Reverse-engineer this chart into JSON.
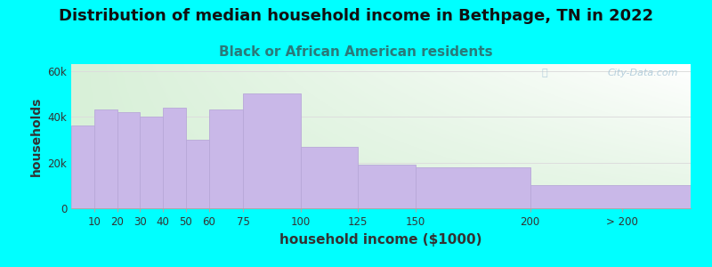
{
  "title": "Distribution of median household income in Bethpage, TN in 2022",
  "subtitle": "Black or African American residents",
  "xlabel": "household income ($1000)",
  "ylabel": "households",
  "bar_labels": [
    "10",
    "20",
    "30",
    "40",
    "50",
    "60",
    "75",
    "100",
    "125",
    "150",
    "200",
    "> 200"
  ],
  "bar_values": [
    36000,
    43000,
    42000,
    40000,
    44000,
    30000,
    43000,
    50000,
    27000,
    19000,
    18000,
    10000
  ],
  "bar_color": "#C9B8E8",
  "bar_edge_color": "#B8A8D8",
  "background_outer": "#00FFFF",
  "ytick_labels": [
    "0",
    "20k",
    "40k",
    "60k"
  ],
  "ytick_values": [
    0,
    20000,
    40000,
    60000
  ],
  "ylim": [
    0,
    63000
  ],
  "title_fontsize": 13,
  "subtitle_fontsize": 11,
  "xlabel_fontsize": 11,
  "ylabel_fontsize": 10,
  "title_color": "#111111",
  "subtitle_color": "#2a7a7a",
  "axis_label_color": "#333333",
  "watermark": "City-Data.com",
  "left_edges": [
    0,
    10,
    20,
    30,
    40,
    50,
    60,
    75,
    100,
    125,
    150,
    200
  ],
  "right_edges": [
    10,
    20,
    30,
    40,
    50,
    60,
    75,
    100,
    125,
    150,
    200,
    270
  ],
  "xlim": [
    0,
    270
  ],
  "tick_positions": [
    10,
    20,
    30,
    40,
    50,
    60,
    75,
    100,
    125,
    150,
    200,
    240
  ]
}
